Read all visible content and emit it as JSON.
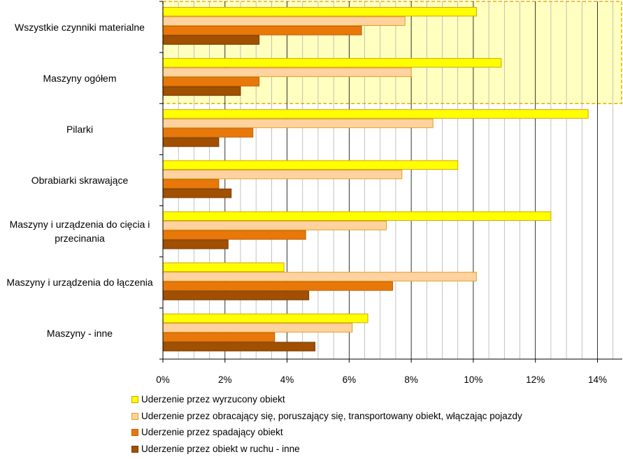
{
  "chart_data": {
    "type": "bar",
    "orientation": "horizontal",
    "categories": [
      "Wszystkie czynniki materialne",
      "Maszyny ogółem",
      "Pilarki",
      "Obrabiarki skrawające",
      "Maszyny i urządzenia do cięcia i przecinania",
      "Maszyny i urządzenia do łączenia",
      "Maszyny - inne"
    ],
    "series": [
      {
        "name": "Uderzenie przez wyrzucony obiekt",
        "color": "#ffff00",
        "values": [
          10.1,
          10.9,
          13.7,
          9.5,
          12.5,
          3.9,
          6.6
        ]
      },
      {
        "name": "Uderzenie przez obracający się, poruszający się, transportowany obiekt, włączając pojazdy",
        "color": "#ffd2a0",
        "values": [
          7.8,
          8.0,
          8.7,
          7.7,
          7.2,
          10.1,
          6.1
        ]
      },
      {
        "name": "Uderzenie przez spadający obiekt",
        "color": "#e8780a",
        "values": [
          6.4,
          3.1,
          2.9,
          1.8,
          4.6,
          7.4,
          3.6
        ]
      },
      {
        "name": "Uderzenie przez obiekt w ruchu - inne",
        "color": "#a05000",
        "values": [
          3.1,
          2.5,
          1.8,
          2.2,
          2.1,
          4.7,
          4.9
        ]
      }
    ],
    "x_ticks": [
      "0%",
      "2%",
      "4%",
      "6%",
      "8%",
      "10%",
      "12%",
      "14%"
    ],
    "xlim": [
      0,
      14.8
    ],
    "grid": "vertical",
    "highlight_categories": [
      "Wszystkie czynniki materialne",
      "Maszyny ogółem"
    ],
    "highlight_color": "#ffffc0",
    "legend_position": "bottom"
  }
}
